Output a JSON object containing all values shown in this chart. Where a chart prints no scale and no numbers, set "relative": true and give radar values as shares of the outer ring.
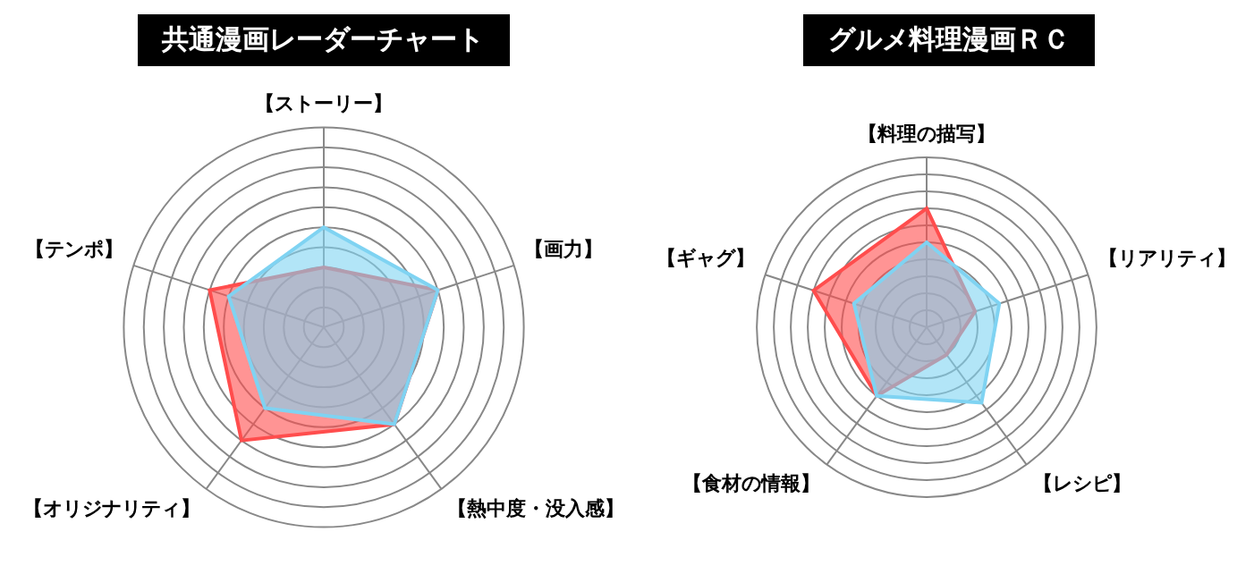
{
  "chart_data": [
    {
      "type": "radar",
      "title": "共通漫画レーダーチャート",
      "relative": true,
      "grid": true,
      "categories": [
        "【ストーリー】",
        "【画力】",
        "【熱中度・没入感】",
        "【オリジナリティ】",
        "【テンポ】"
      ],
      "series": [
        {
          "color": "#7fd3f2",
          "values": [
            0.5,
            0.6,
            0.6,
            0.5,
            0.5
          ]
        },
        {
          "color": "#ff4d4d",
          "values": [
            0.3,
            0.6,
            0.6,
            0.7,
            0.6
          ]
        }
      ]
    },
    {
      "type": "radar",
      "title": "グルメ料理漫画ＲＣ",
      "relative": true,
      "grid": true,
      "categories": [
        "【料理の描写】",
        "【リアリティ】",
        "【レシピ】",
        "【食材の情報】",
        "【ギャグ】"
      ],
      "series": [
        {
          "color": "#7fd3f2",
          "values": [
            0.5,
            0.45,
            0.55,
            0.5,
            0.45
          ]
        },
        {
          "color": "#ff4d4d",
          "values": [
            0.7,
            0.3,
            0.2,
            0.5,
            0.7
          ]
        }
      ]
    }
  ]
}
